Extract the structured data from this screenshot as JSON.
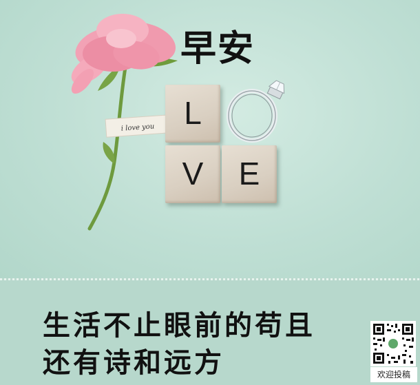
{
  "greeting": "早安",
  "tiles": [
    "L",
    "V",
    "E"
  ],
  "tag_text": "i love you",
  "caption_line1": "生活不止眼前的苟且",
  "caption_line2": "还有诗和远方",
  "qr_label": "欢迎投稿",
  "colors": {
    "background": "#bfdfd4",
    "footer": "#b7d8cc",
    "flower": "#ef8fa6",
    "stem": "#6e9a3e",
    "tile": "#ddd3c6"
  },
  "icons": [
    "flower-icon",
    "ring-icon",
    "qr-code-icon"
  ]
}
